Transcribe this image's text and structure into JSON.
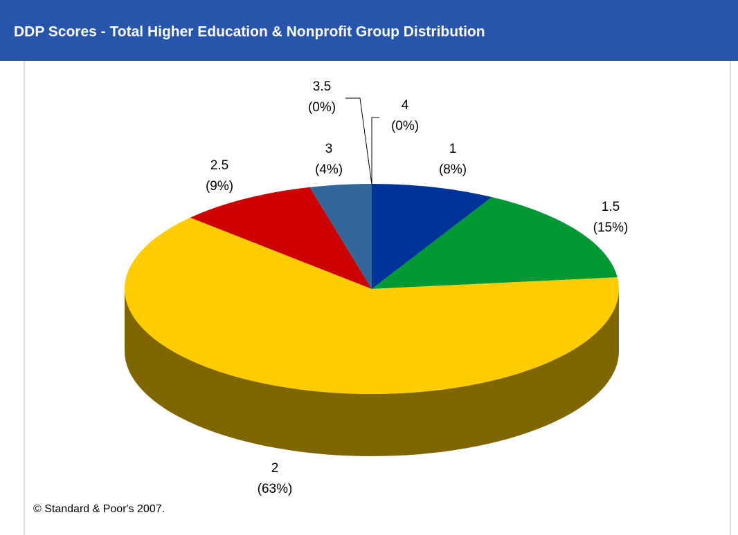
{
  "chart_data": {
    "type": "pie",
    "title": "DDP Scores - Total Higher Education & Nonprofit Group Distribution",
    "categories": [
      "1",
      "1.5",
      "2",
      "2.5",
      "3",
      "3.5",
      "4"
    ],
    "values": [
      8,
      15,
      63,
      9,
      4,
      0,
      0
    ],
    "value_labels": [
      "(8%)",
      "(15%)",
      "(63%)",
      "(9%)",
      "(4%)",
      "(0%)",
      "(0%)"
    ],
    "colors": [
      "#003399",
      "#009933",
      "#ffcc00",
      "#cc0000",
      "#336699",
      "#6b8e23",
      "#999999"
    ],
    "three_d": true,
    "footer": "© Standard & Poor's 2007."
  }
}
